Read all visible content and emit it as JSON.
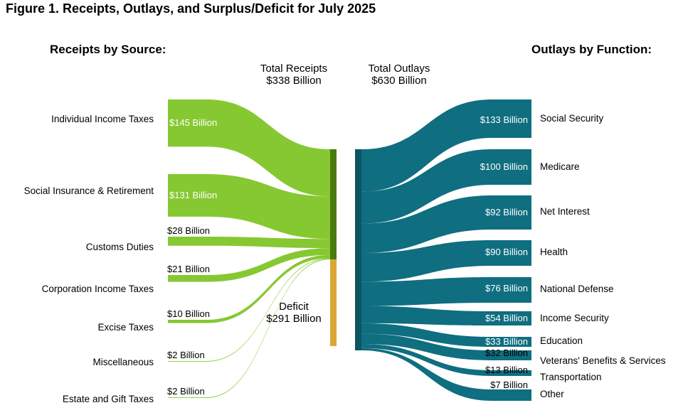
{
  "figure_title": "Figure 1. Receipts, Outlays, and Surplus/Deficit for July 2025",
  "receipts_heading": "Receipts by Source:",
  "outlays_heading": "Outlays by Function:",
  "total_receipts": {
    "label": "Total Receipts",
    "value": "$338 Billion"
  },
  "total_outlays": {
    "label": "Total Outlays",
    "value": "$630 Billion"
  },
  "deficit": {
    "label": "Deficit",
    "value": "$291 Billion"
  },
  "colors": {
    "receipts": "#86c832",
    "receipts_node": "#4a7a10",
    "deficit": "#dba733",
    "outlays": "#0f6e80",
    "outlays_node": "#0c5563"
  },
  "chart_data": {
    "type": "sankey",
    "receipts": [
      {
        "name": "Individual Income Taxes",
        "value": 145,
        "value_label": "$145 Billion"
      },
      {
        "name": "Social Insurance & Retirement",
        "value": 131,
        "value_label": "$131 Billion"
      },
      {
        "name": "Customs Duties",
        "value": 28,
        "value_label": "$28 Billion"
      },
      {
        "name": "Corporation Income Taxes",
        "value": 21,
        "value_label": "$21 Billion"
      },
      {
        "name": "Excise Taxes",
        "value": 10,
        "value_label": "$10 Billion"
      },
      {
        "name": "Miscellaneous",
        "value": 2,
        "value_label": "$2 Billion"
      },
      {
        "name": "Estate and Gift Taxes",
        "value": 2,
        "value_label": "$2 Billion"
      }
    ],
    "deficit_value": 291,
    "outlays": [
      {
        "name": "Social Security",
        "value": 133,
        "value_label": "$133 Billion"
      },
      {
        "name": "Medicare",
        "value": 100,
        "value_label": "$100 Billion"
      },
      {
        "name": "Net Interest",
        "value": 92,
        "value_label": "$92 Billion"
      },
      {
        "name": "Health",
        "value": 90,
        "value_label": "$90 Billion"
      },
      {
        "name": "National Defense",
        "value": 76,
        "value_label": "$76 Billion"
      },
      {
        "name": "Income Security",
        "value": 54,
        "value_label": "$54 Billion"
      },
      {
        "name": "Education",
        "value": 33,
        "value_label": "$33 Billion"
      },
      {
        "name": "Veterans' Benefits & Services",
        "value": 32,
        "value_label": "$32 Billion"
      },
      {
        "name": "Transportation",
        "value": 13,
        "value_label": "$13 Billion"
      },
      {
        "name": "Other",
        "value": 7,
        "value_label": "$7 Billion"
      }
    ]
  }
}
